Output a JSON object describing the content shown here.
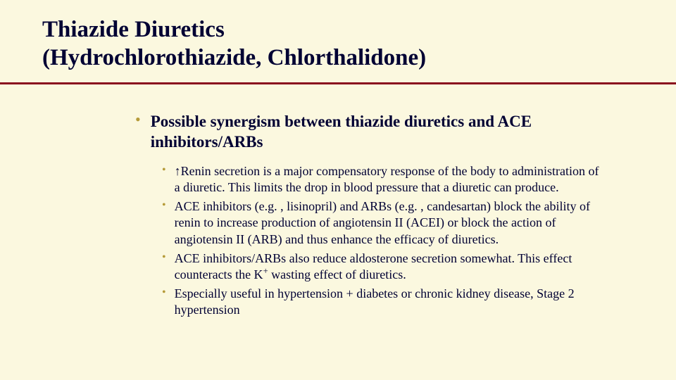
{
  "colors": {
    "background": "#fbf8df",
    "text": "#000033",
    "bullet": "#b59a38",
    "rule": "#8a0d1e"
  },
  "title": {
    "line1": "Thiazide Diuretics",
    "line2": "(Hydrochlorothiazide, Chlorthalidone)"
  },
  "main_bullet": "Possible synergism between thiazide diuretics and ACE inhibitors/ARBs",
  "sub_bullets": [
    "↑Renin secretion is a major compensatory response of the body to administration of a diuretic.  This limits the drop in blood pressure that a diuretic can produce.",
    "ACE inhibitors (e.g. , lisinopril) and ARBs (e.g. , candesartan) block the ability of renin to increase production of angiotensin II (ACEI) or block the action of angiotensin II (ARB) and thus enhance the efficacy of diuretics.",
    "ACE inhibitors/ARBs also reduce aldosterone secretion somewhat. This effect counteracts the K+ wasting effect of diuretics.",
    "Especially useful in hypertension + diabetes or chronic kidney disease, Stage 2 hypertension"
  ],
  "bullet_glyph": "•"
}
